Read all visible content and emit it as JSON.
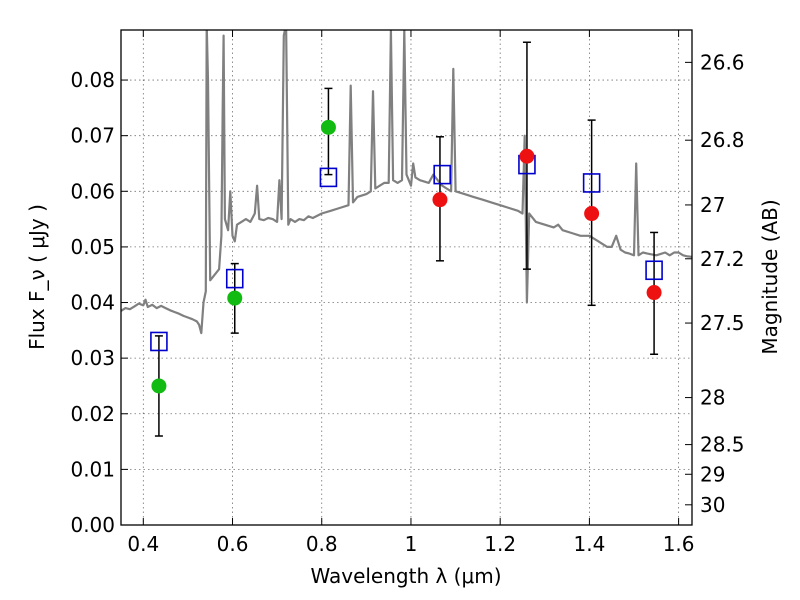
{
  "chart_data": {
    "type": "scatter",
    "xlabel": "Wavelength  λ (μm)",
    "ylabel": "Flux  F_ν  ( μJy )",
    "y2label": "Magnitude (AB)",
    "xlim": [
      0.35,
      1.63
    ],
    "ylim": [
      0.0,
      0.089
    ],
    "grid": true,
    "x_ticks": [
      {
        "v": 0.4,
        "label": "0.4"
      },
      {
        "v": 0.6,
        "label": "0.6"
      },
      {
        "v": 0.8,
        "label": "0.8"
      },
      {
        "v": 1.0,
        "label": "1"
      },
      {
        "v": 1.2,
        "label": "1.2"
      },
      {
        "v": 1.4,
        "label": "1.4"
      },
      {
        "v": 1.6,
        "label": "1.6"
      }
    ],
    "y_ticks": [
      {
        "v": 0.0,
        "label": "0.00"
      },
      {
        "v": 0.01,
        "label": "0.01"
      },
      {
        "v": 0.02,
        "label": "0.02"
      },
      {
        "v": 0.03,
        "label": "0.03"
      },
      {
        "v": 0.04,
        "label": "0.04"
      },
      {
        "v": 0.05,
        "label": "0.05"
      },
      {
        "v": 0.06,
        "label": "0.06"
      },
      {
        "v": 0.07,
        "label": "0.07"
      },
      {
        "v": 0.08,
        "label": "0.08"
      }
    ],
    "mag_ticks": [
      {
        "mag": 26.6,
        "label": "26.6"
      },
      {
        "mag": 26.8,
        "label": "26.8"
      },
      {
        "mag": 27.0,
        "label": "27"
      },
      {
        "mag": 27.2,
        "label": "27.2"
      },
      {
        "mag": 27.5,
        "label": "27.5"
      },
      {
        "mag": 28.0,
        "label": "28"
      },
      {
        "mag": 28.5,
        "label": "28.5"
      },
      {
        "mag": 29.0,
        "label": "29"
      },
      {
        "mag": 30.0,
        "label": "30"
      }
    ],
    "model_spectrum": {
      "color": "#808080",
      "points": [
        [
          0.35,
          0.0385
        ],
        [
          0.36,
          0.039
        ],
        [
          0.37,
          0.0388
        ],
        [
          0.38,
          0.0393
        ],
        [
          0.39,
          0.0398
        ],
        [
          0.4,
          0.0395
        ],
        [
          0.405,
          0.0405
        ],
        [
          0.41,
          0.0392
        ],
        [
          0.42,
          0.0396
        ],
        [
          0.43,
          0.039
        ],
        [
          0.44,
          0.0394
        ],
        [
          0.45,
          0.039
        ],
        [
          0.46,
          0.0386
        ],
        [
          0.47,
          0.0383
        ],
        [
          0.48,
          0.038
        ],
        [
          0.49,
          0.0376
        ],
        [
          0.5,
          0.0373
        ],
        [
          0.51,
          0.037
        ],
        [
          0.52,
          0.0366
        ],
        [
          0.525,
          0.036
        ],
        [
          0.53,
          0.0345
        ],
        [
          0.535,
          0.04
        ],
        [
          0.54,
          0.042
        ],
        [
          0.542,
          0.09
        ],
        [
          0.545,
          0.08
        ],
        [
          0.55,
          0.044
        ],
        [
          0.56,
          0.045
        ],
        [
          0.57,
          0.046
        ],
        [
          0.575,
          0.052
        ],
        [
          0.578,
          0.075
        ],
        [
          0.58,
          0.088
        ],
        [
          0.583,
          0.055
        ],
        [
          0.59,
          0.053
        ],
        [
          0.595,
          0.06
        ],
        [
          0.6,
          0.052
        ],
        [
          0.605,
          0.051
        ],
        [
          0.61,
          0.054
        ],
        [
          0.62,
          0.0545
        ],
        [
          0.63,
          0.055
        ],
        [
          0.64,
          0.0545
        ],
        [
          0.65,
          0.056
        ],
        [
          0.655,
          0.061
        ],
        [
          0.66,
          0.055
        ],
        [
          0.67,
          0.0548
        ],
        [
          0.68,
          0.0552
        ],
        [
          0.69,
          0.055
        ],
        [
          0.7,
          0.0545
        ],
        [
          0.705,
          0.062
        ],
        [
          0.71,
          0.055
        ],
        [
          0.715,
          0.088
        ],
        [
          0.72,
          0.09
        ],
        [
          0.725,
          0.054
        ],
        [
          0.73,
          0.055
        ],
        [
          0.74,
          0.0545
        ],
        [
          0.75,
          0.055
        ],
        [
          0.76,
          0.0548
        ],
        [
          0.77,
          0.0555
        ],
        [
          0.78,
          0.0552
        ],
        [
          0.8,
          0.056
        ],
        [
          0.82,
          0.0565
        ],
        [
          0.84,
          0.057
        ],
        [
          0.86,
          0.0575
        ],
        [
          0.865,
          0.079
        ],
        [
          0.87,
          0.058
        ],
        [
          0.88,
          0.059
        ],
        [
          0.9,
          0.0595
        ],
        [
          0.91,
          0.06
        ],
        [
          0.915,
          0.078
        ],
        [
          0.92,
          0.0605
        ],
        [
          0.93,
          0.061
        ],
        [
          0.94,
          0.0615
        ],
        [
          0.95,
          0.0615
        ],
        [
          0.955,
          0.089
        ],
        [
          0.96,
          0.062
        ],
        [
          0.97,
          0.0615
        ],
        [
          0.98,
          0.062
        ],
        [
          0.985,
          0.089
        ],
        [
          0.99,
          0.063
        ],
        [
          1.0,
          0.061
        ],
        [
          1.005,
          0.065
        ],
        [
          1.01,
          0.0625
        ],
        [
          1.02,
          0.062
        ],
        [
          1.04,
          0.0615
        ],
        [
          1.05,
          0.063
        ],
        [
          1.06,
          0.062
        ],
        [
          1.07,
          0.061
        ],
        [
          1.08,
          0.0605
        ],
        [
          1.09,
          0.06
        ],
        [
          1.095,
          0.082
        ],
        [
          1.1,
          0.06
        ],
        [
          1.12,
          0.0595
        ],
        [
          1.14,
          0.059
        ],
        [
          1.16,
          0.0585
        ],
        [
          1.18,
          0.058
        ],
        [
          1.2,
          0.0575
        ],
        [
          1.22,
          0.057
        ],
        [
          1.24,
          0.0565
        ],
        [
          1.25,
          0.056
        ],
        [
          1.255,
          0.07
        ],
        [
          1.26,
          0.04
        ],
        [
          1.265,
          0.056
        ],
        [
          1.27,
          0.0555
        ],
        [
          1.28,
          0.0545
        ],
        [
          1.3,
          0.054
        ],
        [
          1.32,
          0.0535
        ],
        [
          1.33,
          0.054
        ],
        [
          1.34,
          0.053
        ],
        [
          1.36,
          0.0525
        ],
        [
          1.38,
          0.052
        ],
        [
          1.4,
          0.052
        ],
        [
          1.42,
          0.051
        ],
        [
          1.44,
          0.05
        ],
        [
          1.45,
          0.05
        ],
        [
          1.46,
          0.052
        ],
        [
          1.47,
          0.0495
        ],
        [
          1.48,
          0.049
        ],
        [
          1.49,
          0.0488
        ],
        [
          1.5,
          0.0485
        ],
        [
          1.505,
          0.065
        ],
        [
          1.51,
          0.0485
        ],
        [
          1.52,
          0.049
        ],
        [
          1.53,
          0.0488
        ],
        [
          1.55,
          0.0485
        ],
        [
          1.57,
          0.049
        ],
        [
          1.58,
          0.0485
        ],
        [
          1.59,
          0.049
        ],
        [
          1.6,
          0.049
        ],
        [
          1.61,
          0.0485
        ],
        [
          1.62,
          0.0483
        ],
        [
          1.63,
          0.0482
        ]
      ]
    },
    "series": [
      {
        "marker": "open-square",
        "color": "#0000cc",
        "points": [
          {
            "x": 0.435,
            "y": 0.033
          },
          {
            "x": 0.605,
            "y": 0.0443
          },
          {
            "x": 0.815,
            "y": 0.0625
          },
          {
            "x": 1.07,
            "y": 0.063
          },
          {
            "x": 1.26,
            "y": 0.0648
          },
          {
            "x": 1.405,
            "y": 0.0615
          },
          {
            "x": 1.545,
            "y": 0.0458
          }
        ]
      },
      {
        "marker": "filled-circle",
        "color": "#11bb11",
        "points": [
          {
            "x": 0.435,
            "y": 0.025,
            "err_low": 0.016,
            "err_high": 0.034
          },
          {
            "x": 0.605,
            "y": 0.0408,
            "err_low": 0.0345,
            "err_high": 0.047
          },
          {
            "x": 0.815,
            "y": 0.0715,
            "err_low": 0.063,
            "err_high": 0.0785
          }
        ]
      },
      {
        "marker": "filled-circle",
        "color": "#ee1111",
        "points": [
          {
            "x": 1.065,
            "y": 0.0585,
            "err_low": 0.0475,
            "err_high": 0.0698
          },
          {
            "x": 1.26,
            "y": 0.0663,
            "err_low": 0.046,
            "err_high": 0.0868
          },
          {
            "x": 1.405,
            "y": 0.056,
            "err_low": 0.0395,
            "err_high": 0.0728
          },
          {
            "x": 1.545,
            "y": 0.0418,
            "err_low": 0.0307,
            "err_high": 0.0526
          }
        ]
      }
    ]
  }
}
